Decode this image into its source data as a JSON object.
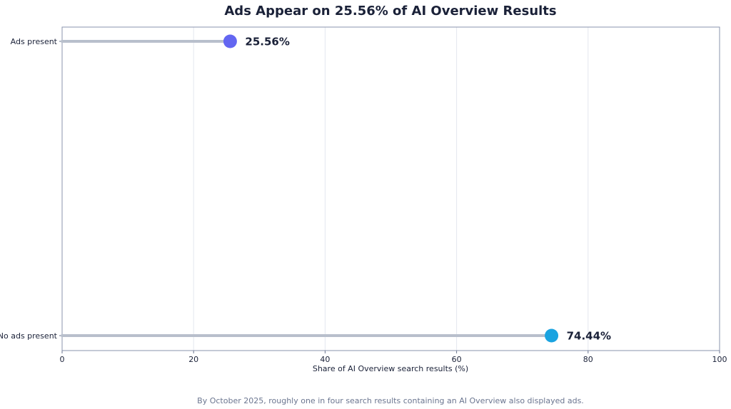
{
  "chart_data": {
    "type": "lollipop",
    "title": "Ads Appear on 25.56% of AI Overview Results",
    "xlabel": "Share of AI Overview search results (%)",
    "ylabel": "",
    "xlim": [
      0,
      100
    ],
    "xticks": [
      0,
      20,
      40,
      60,
      80,
      100
    ],
    "grid": "vertical",
    "categories": [
      "Ads present",
      "No ads present"
    ],
    "values": [
      25.56,
      74.44
    ],
    "value_labels": [
      "25.56%",
      "74.44%"
    ],
    "colors": [
      "#6366f1",
      "#1aa3e0"
    ],
    "stem_color": "#b8bfcc",
    "caption": "By October 2025, roughly one in four search results containing an AI Overview also displayed ads."
  }
}
